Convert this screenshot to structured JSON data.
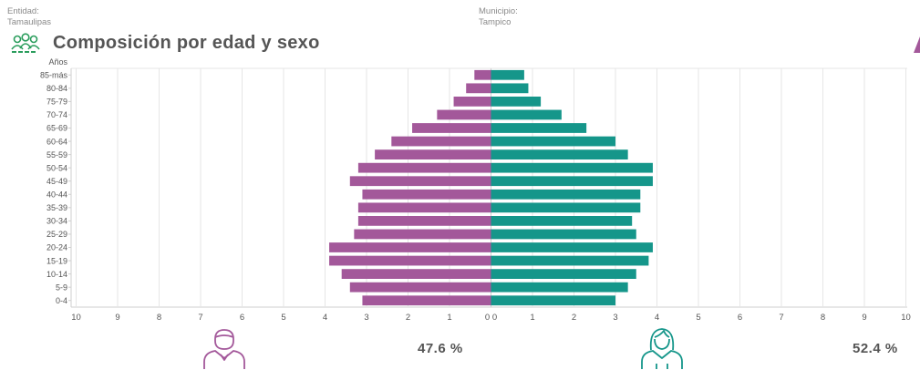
{
  "filters": {
    "entidad": {
      "label": "Entidad:",
      "value": "Tamaulipas"
    },
    "municipio": {
      "label": "Municipio:",
      "value": "Tampico"
    }
  },
  "title": "Composición por edad y sexo",
  "colors": {
    "male": "#a3589a",
    "female": "#15968a",
    "grid": "#e6e6e6",
    "text": "#555555"
  },
  "icons": {
    "title": "people-group-icon",
    "male": "man-icon",
    "female": "woman-icon"
  },
  "percentages": {
    "male": "47.6 %",
    "female": "52.4 %"
  },
  "chart_data": {
    "type": "bar",
    "orientation": "horizontal-pyramid",
    "y_axis_title": "Años",
    "categories": [
      "85-más",
      "80-84",
      "75-79",
      "70-74",
      "65-69",
      "60-64",
      "55-59",
      "50-54",
      "45-49",
      "40-44",
      "35-39",
      "30-34",
      "25-29",
      "20-24",
      "15-19",
      "10-14",
      "5-9",
      "0-4"
    ],
    "series": [
      {
        "values": [
          0.4,
          0.6,
          0.9,
          1.3,
          1.9,
          2.4,
          2.8,
          3.2,
          3.4,
          3.1,
          3.2,
          3.2,
          3.3,
          3.9,
          3.9,
          3.6,
          3.4,
          3.1
        ]
      },
      {
        "values": [
          0.8,
          0.9,
          1.2,
          1.7,
          2.3,
          3.0,
          3.3,
          3.9,
          3.9,
          3.6,
          3.6,
          3.4,
          3.5,
          3.9,
          3.8,
          3.5,
          3.3,
          3.0
        ]
      }
    ],
    "x_ticks_left": [
      "10",
      "9",
      "8",
      "7",
      "6",
      "5",
      "4",
      "3",
      "2",
      "1",
      "0"
    ],
    "x_ticks_right": [
      "0",
      "1",
      "2",
      "3",
      "4",
      "5",
      "6",
      "7",
      "8",
      "9",
      "10"
    ],
    "xlim": [
      0,
      10
    ],
    "grid": true
  }
}
